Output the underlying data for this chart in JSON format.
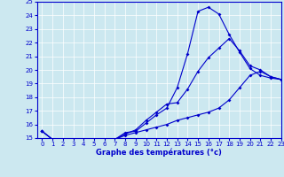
{
  "xlabel": "Graphe des températures (°c)",
  "ylim": [
    15,
    25
  ],
  "xlim": [
    -0.5,
    23
  ],
  "yticks": [
    15,
    16,
    17,
    18,
    19,
    20,
    21,
    22,
    23,
    24,
    25
  ],
  "xticks": [
    0,
    1,
    2,
    3,
    4,
    5,
    6,
    7,
    8,
    9,
    10,
    11,
    12,
    13,
    14,
    15,
    16,
    17,
    18,
    19,
    20,
    21,
    22,
    23
  ],
  "bg_color": "#cce8f0",
  "line_color": "#0000cc",
  "line1": {
    "x": [
      0,
      1,
      2,
      3,
      4,
      5,
      6,
      7,
      8,
      9,
      10,
      11,
      12,
      13,
      14,
      15,
      16,
      17,
      18,
      19,
      20,
      21,
      22,
      23
    ],
    "y": [
      15.5,
      14.9,
      14.4,
      14.1,
      14.4,
      14.5,
      14.9,
      14.9,
      15.4,
      15.5,
      16.1,
      16.7,
      17.2,
      18.7,
      21.2,
      24.3,
      24.6,
      24.1,
      22.6,
      21.3,
      20.1,
      19.6,
      19.4,
      19.3
    ]
  },
  "line2": {
    "x": [
      0,
      1,
      2,
      3,
      4,
      5,
      6,
      7,
      8,
      9,
      10,
      11,
      12,
      13,
      14,
      15,
      16,
      17,
      18,
      19,
      20,
      21,
      22,
      23
    ],
    "y": [
      15.5,
      14.9,
      14.4,
      14.1,
      14.4,
      14.5,
      14.9,
      14.9,
      15.3,
      15.6,
      16.3,
      16.9,
      17.5,
      17.6,
      18.6,
      19.9,
      20.9,
      21.6,
      22.3,
      21.4,
      20.3,
      20.0,
      19.5,
      19.3
    ]
  },
  "line3": {
    "x": [
      0,
      1,
      2,
      3,
      4,
      5,
      6,
      7,
      8,
      9,
      10,
      11,
      12,
      13,
      14,
      15,
      16,
      17,
      18,
      19,
      20,
      21,
      22,
      23
    ],
    "y": [
      15.5,
      14.9,
      14.4,
      14.1,
      14.4,
      14.5,
      14.9,
      14.9,
      15.2,
      15.4,
      15.6,
      15.8,
      16.0,
      16.3,
      16.5,
      16.7,
      16.9,
      17.2,
      17.8,
      18.7,
      19.6,
      19.9,
      19.5,
      19.3
    ]
  }
}
